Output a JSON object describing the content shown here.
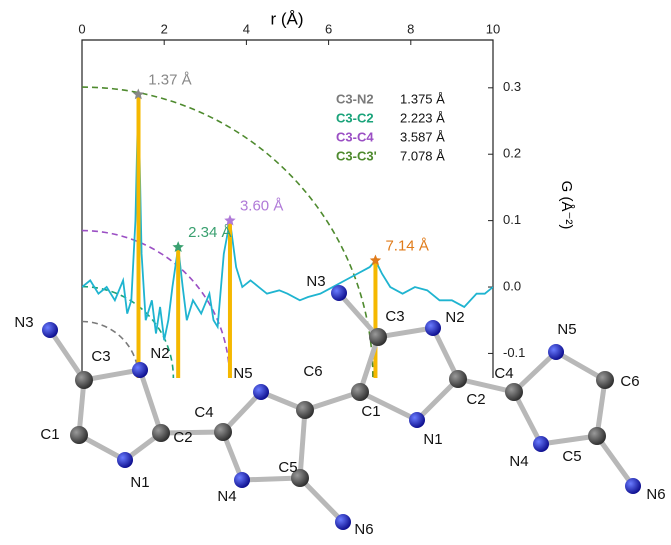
{
  "chart_data": {
    "type": "line",
    "x_label": "r (Å)",
    "y_label": "G (Å⁻²)",
    "xlim": [
      0,
      10
    ],
    "xticks": [
      0,
      2,
      4,
      6,
      8,
      10
    ],
    "ylim": [
      -0.137,
      0.372
    ],
    "yticks": [
      -0.1,
      0.0,
      0.1,
      0.2,
      0.3
    ],
    "series": [
      {
        "color": "#1fb4d0",
        "x": [
          0,
          0.2,
          0.4,
          0.6,
          0.8,
          1.0,
          1.1,
          1.2,
          1.3,
          1.37,
          1.45,
          1.55,
          1.7,
          1.8,
          1.9,
          2.0,
          2.1,
          2.2,
          2.34,
          2.45,
          2.55,
          2.7,
          2.9,
          3.1,
          3.2,
          3.3,
          3.45,
          3.6,
          3.75,
          3.9,
          4.1,
          4.3,
          4.5,
          4.8,
          5.0,
          5.3,
          5.5,
          5.8,
          6.1,
          6.4,
          6.7,
          7.0,
          7.14,
          7.3,
          7.5,
          7.8,
          8.1,
          8.4,
          8.7,
          9.0,
          9.3,
          9.6,
          9.8,
          10
        ],
        "values": [
          0.0,
          0.01,
          -0.01,
          0.0,
          -0.02,
          0.01,
          -0.04,
          -0.02,
          0.1,
          0.29,
          0.05,
          -0.05,
          -0.02,
          -0.07,
          -0.03,
          -0.08,
          -0.05,
          0.0,
          0.06,
          0.0,
          -0.05,
          -0.02,
          -0.04,
          -0.01,
          -0.05,
          -0.06,
          0.05,
          0.1,
          0.03,
          0.0,
          0.01,
          0.0,
          -0.01,
          -0.005,
          -0.01,
          -0.02,
          -0.015,
          -0.01,
          0.0,
          0.01,
          0.02,
          0.03,
          0.04,
          0.02,
          0.0,
          -0.01,
          0.0,
          -0.005,
          -0.02,
          -0.02,
          -0.03,
          -0.01,
          -0.01,
          0.0
        ]
      }
    ],
    "sticks": {
      "color": "#f5b800",
      "x": [
        1.375,
        2.34,
        3.6,
        7.14
      ],
      "values": [
        0.29,
        0.06,
        0.1,
        0.04
      ]
    },
    "peaks": [
      {
        "x": 1.37,
        "y": 0.29,
        "label": "1.37 Å",
        "color": "#888888"
      },
      {
        "x": 2.34,
        "y": 0.06,
        "label": "2.34 Å",
        "color": "#3aa070"
      },
      {
        "x": 3.6,
        "y": 0.1,
        "label": "3.60 Å",
        "color": "#b07ad8"
      },
      {
        "x": 7.14,
        "y": 0.04,
        "label": "7.14 Å",
        "color": "#e07b1a"
      }
    ],
    "legend": [
      {
        "name": "C3-N2",
        "color": "#7a7a7a",
        "value": 1.375,
        "value_label": "1.375 Å"
      },
      {
        "name": "C3-C2",
        "color": "#1aa37a",
        "value": 2.223,
        "value_label": "2.223 Å"
      },
      {
        "name": "C3-C4",
        "color": "#9b4fc4",
        "value": 3.587,
        "value_label": "3.587 Å"
      },
      {
        "name": "C3-C3'",
        "color": "#4e8a2e",
        "value": 7.078,
        "value_label": "7.078 Å"
      }
    ]
  },
  "molecule": {
    "atoms": [
      "N3",
      "C3",
      "N2",
      "C1",
      "N1",
      "C2",
      "C4",
      "N5",
      "C6",
      "N4",
      "C5",
      "N6",
      "C1",
      "C3",
      "N3",
      "N2",
      "N1",
      "C2",
      "C4",
      "N5",
      "C6",
      "N4",
      "C5",
      "N6"
    ]
  }
}
